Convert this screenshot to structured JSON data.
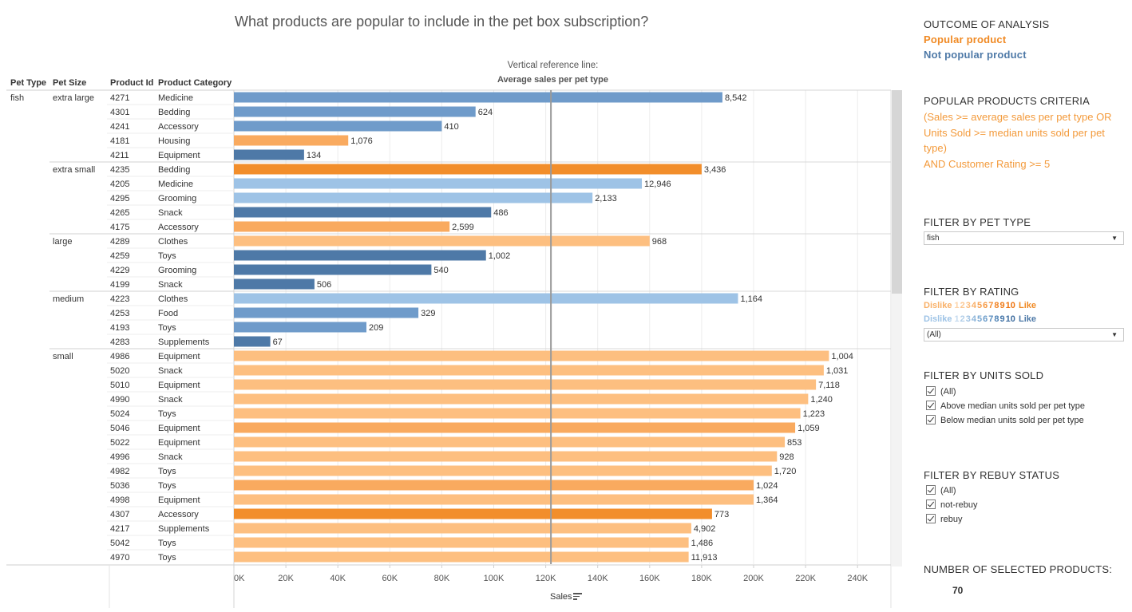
{
  "title": "What products are popular to include in the pet box subscription?",
  "reference_note": {
    "line1": "Vertical reference line:",
    "line2": "Average sales per pet type"
  },
  "column_headers": {
    "pet_type": "Pet Type",
    "pet_size": "Pet Size",
    "product_id": "Product Id",
    "product_category": "Product Category"
  },
  "colors": {
    "popular_dark": "#f28e2b",
    "popular_mid": "#f9aa5f",
    "popular_light": "#fdbf80",
    "not_popular_dark": "#4e79a7",
    "not_popular_mid": "#6f9bca",
    "not_popular_light": "#9ec3e6"
  },
  "chart_data": {
    "type": "bar",
    "orientation": "horizontal",
    "xlabel": "Sales",
    "xlim": [
      0,
      250000
    ],
    "x_ticks": [
      "0K",
      "20K",
      "40K",
      "60K",
      "80K",
      "100K",
      "120K",
      "140K",
      "160K",
      "180K",
      "200K",
      "220K",
      "240K"
    ],
    "reference_line": {
      "label": "Average sales per pet type",
      "value": 122000
    },
    "grid": true,
    "rows": [
      {
        "pet_type": "fish",
        "pet_size": "extra large",
        "id": "4271",
        "category": "Medicine",
        "sales": 188000,
        "label": "8,542",
        "popular": false,
        "shade": "mid"
      },
      {
        "pet_type": "",
        "pet_size": "",
        "id": "4301",
        "category": "Bedding",
        "sales": 93000,
        "label": "624",
        "popular": false,
        "shade": "mid"
      },
      {
        "pet_type": "",
        "pet_size": "",
        "id": "4241",
        "category": "Accessory",
        "sales": 80000,
        "label": "410",
        "popular": false,
        "shade": "mid"
      },
      {
        "pet_type": "",
        "pet_size": "",
        "id": "4181",
        "category": "Housing",
        "sales": 44000,
        "label": "1,076",
        "popular": true,
        "shade": "mid"
      },
      {
        "pet_type": "",
        "pet_size": "",
        "id": "4211",
        "category": "Equipment",
        "sales": 27000,
        "label": "134",
        "popular": false,
        "shade": "dark"
      },
      {
        "pet_type": "",
        "pet_size": "extra small",
        "id": "4235",
        "category": "Bedding",
        "sales": 180000,
        "label": "3,436",
        "popular": true,
        "shade": "dark"
      },
      {
        "pet_type": "",
        "pet_size": "",
        "id": "4205",
        "category": "Medicine",
        "sales": 157000,
        "label": "12,946",
        "popular": false,
        "shade": "light"
      },
      {
        "pet_type": "",
        "pet_size": "",
        "id": "4295",
        "category": "Grooming",
        "sales": 138000,
        "label": "2,133",
        "popular": false,
        "shade": "light"
      },
      {
        "pet_type": "",
        "pet_size": "",
        "id": "4265",
        "category": "Snack",
        "sales": 99000,
        "label": "486",
        "popular": false,
        "shade": "dark"
      },
      {
        "pet_type": "",
        "pet_size": "",
        "id": "4175",
        "category": "Accessory",
        "sales": 83000,
        "label": "2,599",
        "popular": true,
        "shade": "mid"
      },
      {
        "pet_type": "",
        "pet_size": "large",
        "id": "4289",
        "category": "Clothes",
        "sales": 160000,
        "label": "968",
        "popular": true,
        "shade": "light"
      },
      {
        "pet_type": "",
        "pet_size": "",
        "id": "4259",
        "category": "Toys",
        "sales": 97000,
        "label": "1,002",
        "popular": false,
        "shade": "dark"
      },
      {
        "pet_type": "",
        "pet_size": "",
        "id": "4229",
        "category": "Grooming",
        "sales": 76000,
        "label": "540",
        "popular": false,
        "shade": "dark"
      },
      {
        "pet_type": "",
        "pet_size": "",
        "id": "4199",
        "category": "Snack",
        "sales": 31000,
        "label": "506",
        "popular": false,
        "shade": "dark"
      },
      {
        "pet_type": "",
        "pet_size": "medium",
        "id": "4223",
        "category": "Clothes",
        "sales": 194000,
        "label": "1,164",
        "popular": false,
        "shade": "light"
      },
      {
        "pet_type": "",
        "pet_size": "",
        "id": "4253",
        "category": "Food",
        "sales": 71000,
        "label": "329",
        "popular": false,
        "shade": "mid"
      },
      {
        "pet_type": "",
        "pet_size": "",
        "id": "4193",
        "category": "Toys",
        "sales": 51000,
        "label": "209",
        "popular": false,
        "shade": "mid"
      },
      {
        "pet_type": "",
        "pet_size": "",
        "id": "4283",
        "category": "Supplements",
        "sales": 14000,
        "label": "67",
        "popular": false,
        "shade": "dark"
      },
      {
        "pet_type": "",
        "pet_size": "small",
        "id": "4986",
        "category": "Equipment",
        "sales": 229000,
        "label": "1,004",
        "popular": true,
        "shade": "light"
      },
      {
        "pet_type": "",
        "pet_size": "",
        "id": "5020",
        "category": "Snack",
        "sales": 227000,
        "label": "1,031",
        "popular": true,
        "shade": "light"
      },
      {
        "pet_type": "",
        "pet_size": "",
        "id": "5010",
        "category": "Equipment",
        "sales": 224000,
        "label": "7,118",
        "popular": true,
        "shade": "light"
      },
      {
        "pet_type": "",
        "pet_size": "",
        "id": "4990",
        "category": "Snack",
        "sales": 221000,
        "label": "1,240",
        "popular": true,
        "shade": "light"
      },
      {
        "pet_type": "",
        "pet_size": "",
        "id": "5024",
        "category": "Toys",
        "sales": 218000,
        "label": "1,223",
        "popular": true,
        "shade": "light"
      },
      {
        "pet_type": "",
        "pet_size": "",
        "id": "5046",
        "category": "Equipment",
        "sales": 216000,
        "label": "1,059",
        "popular": true,
        "shade": "mid"
      },
      {
        "pet_type": "",
        "pet_size": "",
        "id": "5022",
        "category": "Equipment",
        "sales": 212000,
        "label": "853",
        "popular": true,
        "shade": "light"
      },
      {
        "pet_type": "",
        "pet_size": "",
        "id": "4996",
        "category": "Snack",
        "sales": 209000,
        "label": "928",
        "popular": true,
        "shade": "light"
      },
      {
        "pet_type": "",
        "pet_size": "",
        "id": "4982",
        "category": "Toys",
        "sales": 207000,
        "label": "1,720",
        "popular": true,
        "shade": "light"
      },
      {
        "pet_type": "",
        "pet_size": "",
        "id": "5036",
        "category": "Toys",
        "sales": 200000,
        "label": "1,024",
        "popular": true,
        "shade": "mid"
      },
      {
        "pet_type": "",
        "pet_size": "",
        "id": "4998",
        "category": "Equipment",
        "sales": 200000,
        "label": "1,364",
        "popular": true,
        "shade": "light"
      },
      {
        "pet_type": "",
        "pet_size": "",
        "id": "4307",
        "category": "Accessory",
        "sales": 184000,
        "label": "773",
        "popular": true,
        "shade": "dark"
      },
      {
        "pet_type": "",
        "pet_size": "",
        "id": "4217",
        "category": "Supplements",
        "sales": 176000,
        "label": "4,902",
        "popular": true,
        "shade": "light"
      },
      {
        "pet_type": "",
        "pet_size": "",
        "id": "5042",
        "category": "Toys",
        "sales": 175000,
        "label": "1,486",
        "popular": true,
        "shade": "light"
      },
      {
        "pet_type": "",
        "pet_size": "",
        "id": "4970",
        "category": "Toys",
        "sales": 175000,
        "label": "11,913",
        "popular": true,
        "shade": "light"
      }
    ]
  },
  "side_panel": {
    "outcome": {
      "title": "OUTCOME OF ANALYSIS",
      "popular": "Popular product",
      "not_popular": "Not popular product"
    },
    "criteria": {
      "title": "POPULAR PRODUCTS CRITERIA",
      "line1": "(Sales >= average sales per pet type OR",
      "line2": "Units Sold >= median units sold per pet",
      "line3": "type)",
      "line4": "AND Customer Rating >= 5"
    },
    "filter_pet_type": {
      "title": "FILTER BY PET TYPE",
      "value": "fish"
    },
    "filter_rating": {
      "title": "FILTER BY RATING",
      "dislike": "Dislike",
      "like": "Like",
      "scale": [
        "1",
        "2",
        "3",
        "4",
        "5",
        "6",
        "7",
        "8",
        "9",
        "10"
      ],
      "value": "(All)"
    },
    "filter_units_sold": {
      "title": "FILTER BY UNITS SOLD",
      "options": [
        "(All)",
        "Above median units sold per pet type",
        "Below median units sold per pet type"
      ]
    },
    "filter_rebuy": {
      "title": "FILTER BY REBUY STATUS",
      "options": [
        "(All)",
        "not-rebuy",
        "rebuy"
      ]
    },
    "selected_count": {
      "title": "NUMBER OF SELECTED PRODUCTS:",
      "value": "70"
    }
  }
}
